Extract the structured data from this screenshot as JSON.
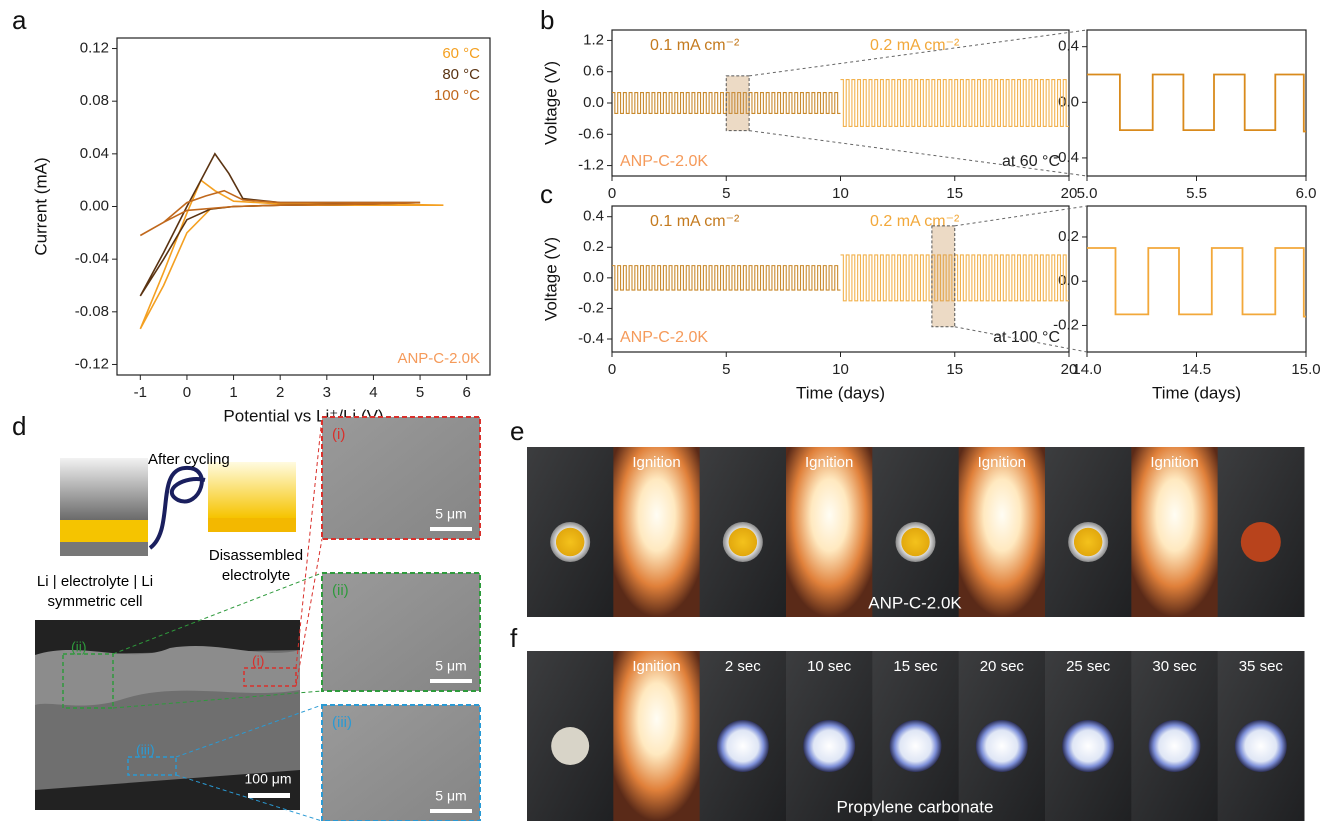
{
  "panel_labels": [
    "a",
    "b",
    "c",
    "d",
    "e",
    "f"
  ],
  "chart_data": [
    {
      "type": "line",
      "xlabel": "Potential vs Li⁺/Li (V)",
      "ylabel": "Current (mA)",
      "annotation": "ANP-C-2.0K",
      "xlim": [
        -1.5,
        6.5
      ],
      "xticks": [
        -1,
        0,
        1,
        2,
        3,
        4,
        5,
        6
      ],
      "ylim": [
        -0.128,
        0.128
      ],
      "yticks": [
        -0.12,
        -0.08,
        -0.04,
        {
          "value": 0,
          "label": "0.00"
        },
        0.04,
        0.08,
        0.12
      ],
      "series": [
        {
          "name": "60 °C",
          "color": "#f4a021",
          "x": [
            -1,
            -0.5,
            0,
            0.3,
            0.6,
            1,
            2,
            3,
            4,
            5.5,
            4,
            2,
            1,
            0.5,
            0,
            -0.5,
            -1
          ],
          "values": [
            -0.093,
            -0.05,
            -0.005,
            0.02,
            0.012,
            0.004,
            0.002,
            0.002,
            0.002,
            0.001,
            0.001,
            0.001,
            0.0,
            -0.002,
            -0.02,
            -0.06,
            -0.093
          ]
        },
        {
          "name": "80 °C",
          "color": "#5a3312",
          "x": [
            -1,
            -0.5,
            0,
            0.3,
            0.6,
            0.9,
            1.2,
            2,
            3,
            4,
            5,
            4,
            2,
            1,
            0.5,
            0,
            -0.5,
            -1
          ],
          "values": [
            -0.068,
            -0.035,
            0.0,
            0.02,
            0.04,
            0.025,
            0.006,
            0.003,
            0.003,
            0.003,
            0.003,
            0.002,
            0.001,
            0.0,
            -0.002,
            -0.01,
            -0.04,
            -0.068
          ]
        },
        {
          "name": "100 °C",
          "color": "#c0681c",
          "x": [
            -1,
            -0.5,
            0,
            0.4,
            0.8,
            1.2,
            2,
            3,
            4,
            5,
            4,
            2,
            1,
            0,
            -0.5,
            -1
          ],
          "values": [
            -0.022,
            -0.012,
            0.003,
            0.008,
            0.012,
            0.005,
            0.003,
            0.003,
            0.003,
            0.003,
            0.002,
            0.001,
            0.0,
            -0.003,
            -0.012,
            -0.022
          ]
        }
      ]
    },
    {
      "type": "square_wave",
      "ylabel": "Voltage (V)",
      "annotations": [
        "0.1 mA cm⁻²",
        "0.2 mA cm⁻²",
        "ANP-C-2.0K",
        "at 60 °C"
      ],
      "xlim": [
        0,
        20
      ],
      "xticks": [
        0,
        5,
        10,
        15,
        20
      ],
      "ylim": [
        -1.4,
        1.4
      ],
      "yticks": [
        -1.2,
        -0.6,
        {
          "value": 0,
          "label": "0.0"
        },
        0.6,
        1.2
      ],
      "half_period": 0.125,
      "segments": [
        {
          "start": 0,
          "end": 10,
          "amplitude": 0.2,
          "color": "#c98a2e"
        },
        {
          "start": 10,
          "end": 20,
          "amplitude": 0.45,
          "color": "#f2b24e"
        }
      ]
    },
    {
      "type": "line",
      "color": "#d98a1c",
      "xlim": [
        5,
        6
      ],
      "xticks": [
        {
          "value": 5,
          "label": "5.0"
        },
        5.5,
        {
          "value": 6,
          "label": "6.0"
        }
      ],
      "ylim": [
        -0.53,
        0.52
      ],
      "yticks": [
        -0.4,
        {
          "value": 0,
          "label": "0.0"
        },
        0.4
      ],
      "x": [
        5.0,
        5.15,
        5.15,
        5.3,
        5.3,
        5.44,
        5.44,
        5.58,
        5.58,
        5.72,
        5.72,
        5.86,
        5.86,
        5.99,
        5.99,
        6.0
      ],
      "values": [
        0.2,
        0.2,
        -0.2,
        -0.2,
        0.2,
        0.2,
        -0.2,
        -0.2,
        0.2,
        0.2,
        -0.2,
        -0.2,
        0.2,
        0.2,
        -0.21,
        -0.21
      ]
    },
    {
      "type": "square_wave",
      "ylabel": "Voltage (V)",
      "xlabel": "Time (days)",
      "annotations": [
        "0.1 mA cm⁻²",
        "0.2 mA cm⁻²",
        "ANP-C-2.0K",
        "at 100 °C"
      ],
      "xlim": [
        0,
        20
      ],
      "xticks": [
        0,
        5,
        10,
        15,
        20
      ],
      "ylim": [
        -0.485,
        0.47
      ],
      "yticks": [
        -0.4,
        -0.2,
        {
          "value": 0,
          "label": "0.0"
        },
        0.2,
        0.4
      ],
      "half_period": 0.125,
      "segments": [
        {
          "start": 0,
          "end": 10,
          "amplitude": 0.08,
          "color": "#c98a2e"
        },
        {
          "start": 10,
          "end": 20,
          "amplitude": 0.15,
          "color": "#f2b24e"
        }
      ]
    },
    {
      "type": "line",
      "color": "#f2a83a",
      "xlabel": "Time (days)",
      "xlim": [
        14,
        15
      ],
      "xticks": [
        {
          "value": 14,
          "label": "14.0"
        },
        14.5,
        {
          "value": 15,
          "label": "15.0"
        }
      ],
      "ylim": [
        -0.32,
        0.34
      ],
      "yticks": [
        -0.2,
        {
          "value": 0,
          "label": "0.0"
        },
        0.2
      ],
      "x": [
        14.0,
        14.13,
        14.13,
        14.28,
        14.28,
        14.42,
        14.42,
        14.57,
        14.57,
        14.71,
        14.71,
        14.86,
        14.86,
        14.99,
        14.99,
        15.0
      ],
      "values": [
        0.15,
        0.15,
        -0.15,
        -0.15,
        0.15,
        0.15,
        -0.15,
        -0.15,
        0.15,
        0.15,
        -0.15,
        -0.15,
        0.15,
        0.15,
        -0.16,
        -0.16
      ]
    }
  ],
  "panel_d": {
    "arrow_label": "After cycling",
    "cell_label": [
      "Li | electrolyte | Li",
      "symmetric cell"
    ],
    "result_label": [
      "Disassembled",
      "electrolyte"
    ],
    "regions": [
      "(i)",
      "(ii)",
      "(iii)"
    ],
    "zoom_scale_bars": [
      "5 μm",
      "5 μm",
      "5 μm"
    ],
    "scale_bar": "100 μm"
  },
  "panel_e": {
    "labels": [
      "Ignition",
      "Ignition",
      "Ignition",
      "Ignition"
    ],
    "caption": "ANP-C-2.0K"
  },
  "panel_f": {
    "labels": [
      "Ignition",
      "2 sec",
      "10 sec",
      "15 sec",
      "20 sec",
      "25 sec",
      "30 sec",
      "35 sec"
    ],
    "caption": "Propylene carbonate"
  }
}
